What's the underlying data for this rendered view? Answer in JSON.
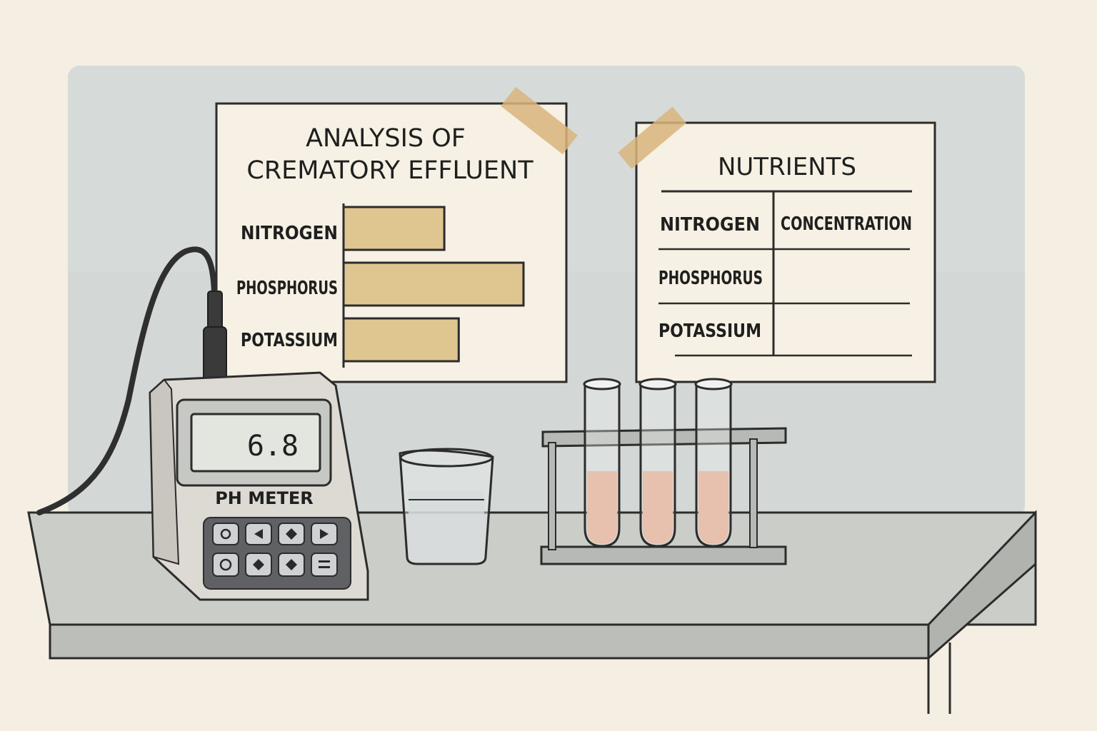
{
  "left_poster": {
    "title_line1": "ANALYSIS OF",
    "title_line2": "CREMATORY EFFLUENT",
    "tape_color": "#d9b47c",
    "bar_color": "#dfc590",
    "chart_data": {
      "type": "bar",
      "orientation": "horizontal",
      "title": "ANALYSIS OF CREMATORY EFFLUENT",
      "categories": [
        "NITROGEN",
        "PHOSPHORUS",
        "POTASSIUM"
      ],
      "values": [
        0.56,
        1.0,
        0.64
      ],
      "value_scale": "relative to longest bar (no axis printed)",
      "xlabel": "",
      "ylabel": ""
    }
  },
  "right_poster": {
    "title": "NUTRIENTS",
    "table": {
      "header": [
        "NITROGEN",
        "CONCENTRATION"
      ],
      "rows": [
        [
          "PHOSPHORUS",
          ""
        ],
        [
          "POTASSIUM",
          ""
        ]
      ]
    }
  },
  "ph_meter": {
    "display": "6.8",
    "label": "PH METER",
    "keys": [
      "power-icon",
      "left-arrow-icon",
      "diamond-icon",
      "right-arrow-icon",
      "cycle-icon",
      "diamond-icon",
      "diamond-icon",
      "equals-icon"
    ]
  },
  "test_tubes": {
    "count": 3,
    "liquid_color": "#e3a68c"
  },
  "beaker": {
    "liquid_color": "#c9ced0"
  },
  "colors": {
    "wall": "#d7dcd9",
    "bench_top": "#c9cbc6",
    "bench_front": "#b9bbb6",
    "outline": "#2c2c2c",
    "poster_paper": "#f6f1e4"
  }
}
